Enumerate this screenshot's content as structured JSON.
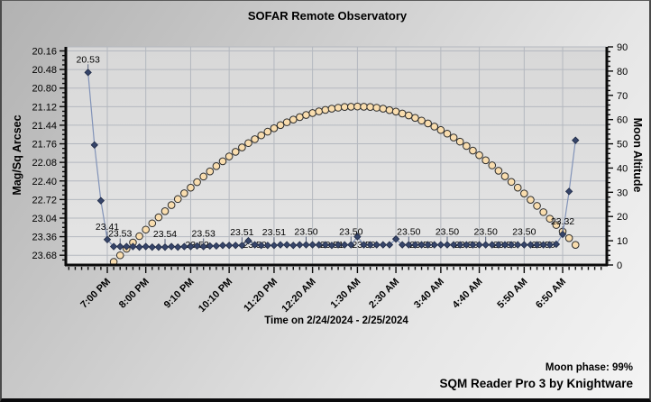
{
  "header": {
    "title": "SOFAR Remote Observatory"
  },
  "footer": {
    "moon_phase": "Moon phase: 99%",
    "app": "SQM Reader Pro 3 by Knightware"
  },
  "chart_data": {
    "type": "line",
    "title": "SOFAR Remote Observatory",
    "x_axis": {
      "label": "Time on 2/24/2024 - 2/25/2024",
      "ticks": [
        {
          "m": 0,
          "label": "7:00 PM"
        },
        {
          "m": 60,
          "label": "8:00 PM"
        },
        {
          "m": 130,
          "label": "9:10 PM"
        },
        {
          "m": 190,
          "label": "10:10 PM"
        },
        {
          "m": 260,
          "label": "11:20 PM"
        },
        {
          "m": 320,
          "label": "12:20 AM"
        },
        {
          "m": 390,
          "label": "1:30 AM"
        },
        {
          "m": 450,
          "label": "2:30 AM"
        },
        {
          "m": 520,
          "label": "3:40 AM"
        },
        {
          "m": 580,
          "label": "4:40 AM"
        },
        {
          "m": 650,
          "label": "5:50 AM"
        },
        {
          "m": 710,
          "label": "6:50 AM"
        }
      ]
    },
    "left_axis": {
      "label": "Mag/Sq Arcsec",
      "tick_values": [
        20.16,
        20.48,
        20.8,
        21.12,
        21.44,
        21.76,
        22.08,
        22.4,
        22.72,
        23.04,
        23.36,
        23.68
      ],
      "inverted": true
    },
    "right_axis": {
      "label": "Moon Altitude",
      "tick_values": [
        0,
        10,
        20,
        30,
        40,
        50,
        60,
        70,
        80,
        90
      ],
      "min": 0,
      "max": 90
    },
    "grid": true,
    "series": [
      {
        "name": "sqm-readings",
        "axis": "left",
        "marker": "diamond",
        "marker_color": "#36456a",
        "marker_stroke": "#1f2a45",
        "line_color": "#8293b8",
        "start_minute": -30,
        "step_minutes": 10,
        "values": [
          20.53,
          21.78,
          22.74,
          23.41,
          23.53,
          23.53,
          23.53,
          23.53,
          23.54,
          23.53,
          23.54,
          23.54,
          23.54,
          23.53,
          23.54,
          23.53,
          23.53,
          23.52,
          23.53,
          23.52,
          23.52,
          23.51,
          23.51,
          23.51,
          23.51,
          23.43,
          23.5,
          23.51,
          23.51,
          23.51,
          23.5,
          23.5,
          23.51,
          23.5,
          23.5,
          23.5,
          23.5,
          23.5,
          23.51,
          23.5,
          23.5,
          23.5,
          23.36,
          23.5,
          23.5,
          23.5,
          23.5,
          23.5,
          23.4,
          23.5,
          23.5,
          23.5,
          23.5,
          23.5,
          23.5,
          23.5,
          23.5,
          23.5,
          23.5,
          23.5,
          23.5,
          23.5,
          23.5,
          23.5,
          23.5,
          23.5,
          23.5,
          23.5,
          23.5,
          23.5,
          23.5,
          23.5,
          23.5,
          23.49,
          23.32,
          22.58,
          21.7
        ]
      },
      {
        "name": "moon-altitude",
        "axis": "right",
        "marker": "circle",
        "marker_color": "#f9ddae",
        "marker_stroke": "#2b2b2b",
        "start_minute": 10,
        "step_minutes": 10,
        "values": [
          1.3,
          4.0,
          6.7,
          9.3,
          11.9,
          14.6,
          17.2,
          19.7,
          22.2,
          24.7,
          27.2,
          29.6,
          31.9,
          34.2,
          36.5,
          38.6,
          40.8,
          42.8,
          44.8,
          46.7,
          48.5,
          50.3,
          51.9,
          53.5,
          55.0,
          56.4,
          57.7,
          58.9,
          60.0,
          61.0,
          61.9,
          62.7,
          63.4,
          64.0,
          64.5,
          64.9,
          65.2,
          65.3,
          65.4,
          65.3,
          65.2,
          64.9,
          64.5,
          63.9,
          63.3,
          62.5,
          61.7,
          60.7,
          59.6,
          58.4,
          57.1,
          55.7,
          54.2,
          52.6,
          50.9,
          49.1,
          47.2,
          45.3,
          43.2,
          41.1,
          38.9,
          36.6,
          34.3,
          31.9,
          29.5,
          26.9,
          24.4,
          21.8,
          19.1,
          16.5,
          13.8,
          11.1,
          8.3
        ]
      }
    ],
    "point_labels_above": [
      {
        "m": -30,
        "text": "20.53"
      },
      {
        "m": 0,
        "text": "23.41"
      },
      {
        "m": 20,
        "text": "23.53"
      },
      {
        "m": 90,
        "text": "23.54"
      },
      {
        "m": 150,
        "text": "23.53"
      },
      {
        "m": 210,
        "text": "23.51"
      },
      {
        "m": 260,
        "text": "23.51"
      },
      {
        "m": 310,
        "text": "23.50"
      },
      {
        "m": 380,
        "text": "23.50"
      },
      {
        "m": 470,
        "text": "23.50"
      },
      {
        "m": 530,
        "text": "23.50"
      },
      {
        "m": 590,
        "text": "23.50"
      },
      {
        "m": 650,
        "text": "23.50"
      },
      {
        "m": 710,
        "text": "23.32"
      }
    ],
    "point_labels_inline": [
      {
        "m": 140,
        "text": "23.52"
      },
      {
        "m": 230,
        "text": "23.50"
      },
      {
        "m": 350,
        "text": "23.51"
      },
      {
        "m": 400,
        "text": "23.50"
      },
      {
        "m": 490,
        "text": "23.50"
      },
      {
        "m": 560,
        "text": "23.50"
      },
      {
        "m": 620,
        "text": "23.50"
      },
      {
        "m": 680,
        "text": "23.50"
      }
    ],
    "moon_phase_pct": "99%",
    "colors": {
      "plot_bg_top": "#d9d9d9",
      "plot_bg_bottom": "#e4e4e4",
      "grid": "#b4b8bf",
      "axis": "#0a0a0a",
      "text": "#000000"
    }
  }
}
